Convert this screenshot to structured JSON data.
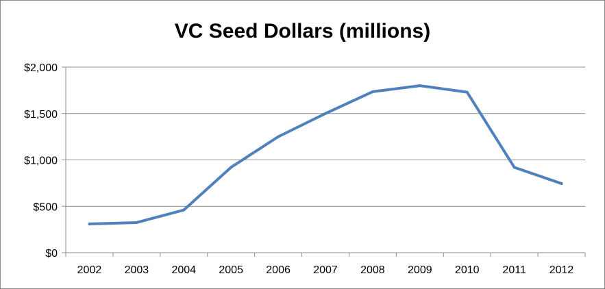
{
  "chart_data": {
    "type": "line",
    "title": "VC Seed Dollars (millions)",
    "xlabel": "",
    "ylabel": "",
    "x": [
      "2002",
      "2003",
      "2004",
      "2005",
      "2006",
      "2007",
      "2008",
      "2009",
      "2010",
      "2011",
      "2012"
    ],
    "series": [
      {
        "values": [
          310,
          325,
          460,
          920,
          1250,
          1500,
          1735,
          1800,
          1730,
          920,
          745
        ],
        "color": "#4f81bd"
      }
    ],
    "ylim": [
      0,
      2000
    ],
    "yticks": [
      0,
      500,
      1000,
      1500,
      2000
    ],
    "ytick_labels": [
      "$0",
      "$500",
      "$1,000",
      "$1,500",
      "$2,000"
    ],
    "grid": true,
    "legend": "none"
  }
}
